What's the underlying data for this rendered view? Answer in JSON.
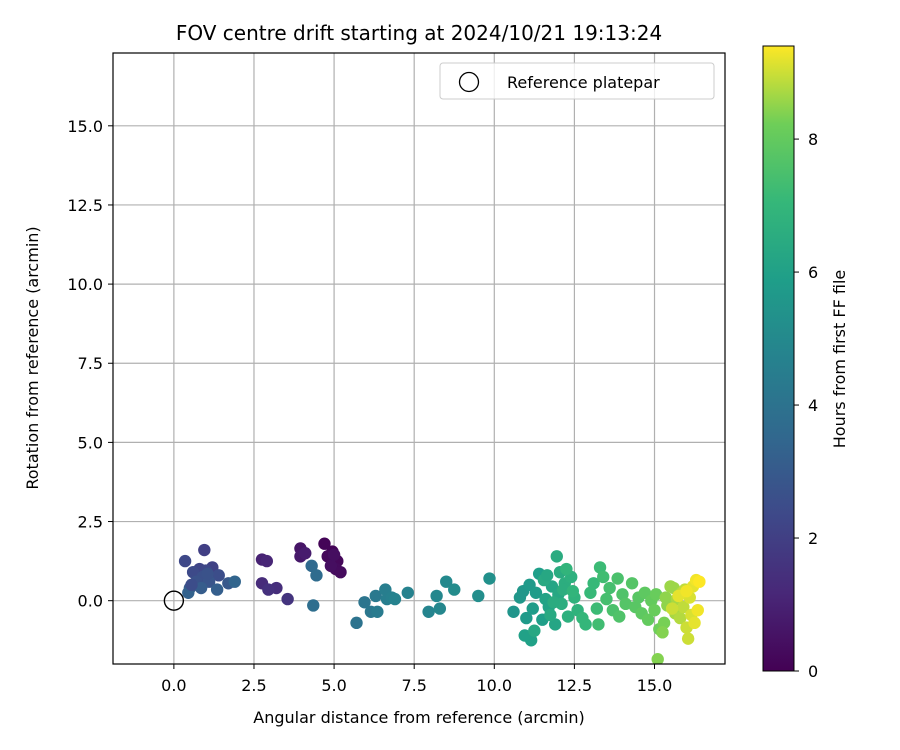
{
  "chart_data": {
    "type": "scatter",
    "title": "FOV centre drift starting at 2024/10/21 19:13:24",
    "xlabel": "Angular distance from reference (arcmin)",
    "ylabel": "Rotation from reference (arcmin)",
    "xlim": [
      -1.9,
      17.2
    ],
    "ylim": [
      -2.0,
      17.3
    ],
    "xticks": [
      0,
      2.5,
      5,
      7.5,
      10,
      12.5,
      15
    ],
    "xtick_labels": [
      "0.0",
      "2.5",
      "5.0",
      "7.5",
      "10.0",
      "12.5",
      "15.0"
    ],
    "yticks": [
      0,
      2.5,
      5,
      7.5,
      10,
      12.5,
      15
    ],
    "ytick_labels": [
      "0.0",
      "2.5",
      "5.0",
      "7.5",
      "10.0",
      "12.5",
      "15.0"
    ],
    "grid": true,
    "legend": {
      "position": "top-right",
      "entries": [
        "Reference platepar"
      ]
    },
    "reference_point": {
      "x": 0.0,
      "y": 0.0,
      "label": "Reference platepar",
      "marker": "open circle"
    },
    "colorbar": {
      "label": "Hours from first FF file",
      "range": [
        0,
        9.4
      ],
      "ticks": [
        0,
        2,
        4,
        6,
        8
      ],
      "tick_labels": [
        "0",
        "2",
        "4",
        "6",
        "8"
      ],
      "colormap": "viridis"
    },
    "points": [
      {
        "x": 4.7,
        "y": 1.8,
        "h": 0.1
      },
      {
        "x": 4.95,
        "y": 1.55,
        "h": 0.1
      },
      {
        "x": 5.1,
        "y": 1.25,
        "h": 0.2
      },
      {
        "x": 4.8,
        "y": 1.4,
        "h": 0.2
      },
      {
        "x": 5.05,
        "y": 1.0,
        "h": 0.3
      },
      {
        "x": 5.2,
        "y": 0.9,
        "h": 0.3
      },
      {
        "x": 4.9,
        "y": 1.1,
        "h": 0.4
      },
      {
        "x": 5.0,
        "y": 1.45,
        "h": 0.4
      },
      {
        "x": 3.95,
        "y": 1.65,
        "h": 0.6
      },
      {
        "x": 3.95,
        "y": 1.4,
        "h": 0.7
      },
      {
        "x": 4.1,
        "y": 1.5,
        "h": 0.8
      },
      {
        "x": 2.75,
        "y": 1.3,
        "h": 1.0
      },
      {
        "x": 2.9,
        "y": 1.25,
        "h": 1.1
      },
      {
        "x": 2.75,
        "y": 0.55,
        "h": 1.3
      },
      {
        "x": 3.2,
        "y": 0.4,
        "h": 1.4
      },
      {
        "x": 2.95,
        "y": 0.35,
        "h": 1.5
      },
      {
        "x": 3.55,
        "y": 0.05,
        "h": 1.6
      },
      {
        "x": 0.95,
        "y": 1.6,
        "h": 2.0
      },
      {
        "x": 0.35,
        "y": 1.25,
        "h": 2.3
      },
      {
        "x": 1.2,
        "y": 1.05,
        "h": 2.1
      },
      {
        "x": 0.8,
        "y": 1.0,
        "h": 2.2
      },
      {
        "x": 1.0,
        "y": 0.95,
        "h": 2.3
      },
      {
        "x": 0.6,
        "y": 0.9,
        "h": 2.4
      },
      {
        "x": 1.4,
        "y": 0.8,
        "h": 2.5
      },
      {
        "x": 0.9,
        "y": 0.75,
        "h": 2.6
      },
      {
        "x": 0.7,
        "y": 0.6,
        "h": 2.7
      },
      {
        "x": 1.1,
        "y": 0.6,
        "h": 2.8
      },
      {
        "x": 1.7,
        "y": 0.55,
        "h": 2.9
      },
      {
        "x": 0.5,
        "y": 0.4,
        "h": 3.0
      },
      {
        "x": 0.85,
        "y": 0.4,
        "h": 3.1
      },
      {
        "x": 1.35,
        "y": 0.35,
        "h": 3.2
      },
      {
        "x": 0.45,
        "y": 0.25,
        "h": 3.3
      },
      {
        "x": 1.9,
        "y": 0.6,
        "h": 3.4
      },
      {
        "x": 0.55,
        "y": 0.5,
        "h": 2.5
      },
      {
        "x": 1.05,
        "y": 0.85,
        "h": 2.7
      },
      {
        "x": 4.3,
        "y": 1.1,
        "h": 3.6
      },
      {
        "x": 4.45,
        "y": 0.8,
        "h": 3.7
      },
      {
        "x": 4.35,
        "y": -0.15,
        "h": 3.8
      },
      {
        "x": 5.7,
        "y": -0.7,
        "h": 4.0
      },
      {
        "x": 5.95,
        "y": -0.05,
        "h": 4.1
      },
      {
        "x": 6.15,
        "y": -0.35,
        "h": 4.2
      },
      {
        "x": 6.3,
        "y": 0.15,
        "h": 4.3
      },
      {
        "x": 6.35,
        "y": -0.35,
        "h": 4.4
      },
      {
        "x": 6.6,
        "y": 0.35,
        "h": 4.5
      },
      {
        "x": 6.65,
        "y": 0.05,
        "h": 4.5
      },
      {
        "x": 6.8,
        "y": 0.1,
        "h": 4.6
      },
      {
        "x": 6.9,
        "y": 0.05,
        "h": 4.7
      },
      {
        "x": 7.3,
        "y": 0.25,
        "h": 4.7
      },
      {
        "x": 7.95,
        "y": -0.35,
        "h": 4.8
      },
      {
        "x": 8.2,
        "y": 0.15,
        "h": 4.9
      },
      {
        "x": 8.3,
        "y": -0.25,
        "h": 4.9
      },
      {
        "x": 8.5,
        "y": 0.6,
        "h": 5.0
      },
      {
        "x": 8.75,
        "y": 0.35,
        "h": 5.1
      },
      {
        "x": 9.5,
        "y": 0.15,
        "h": 5.2
      },
      {
        "x": 9.85,
        "y": 0.7,
        "h": 5.3
      },
      {
        "x": 10.6,
        "y": -0.35,
        "h": 5.5
      },
      {
        "x": 10.8,
        "y": 0.1,
        "h": 5.6
      },
      {
        "x": 10.9,
        "y": 0.3,
        "h": 5.6
      },
      {
        "x": 11.0,
        "y": -0.55,
        "h": 5.7
      },
      {
        "x": 11.1,
        "y": 0.5,
        "h": 5.7
      },
      {
        "x": 11.2,
        "y": -0.25,
        "h": 5.8
      },
      {
        "x": 11.3,
        "y": 0.25,
        "h": 5.8
      },
      {
        "x": 11.4,
        "y": 0.85,
        "h": 5.9
      },
      {
        "x": 11.5,
        "y": -0.6,
        "h": 5.9
      },
      {
        "x": 11.15,
        "y": -1.25,
        "h": 6.0
      },
      {
        "x": 10.95,
        "y": -1.1,
        "h": 6.0
      },
      {
        "x": 11.6,
        "y": 0.05,
        "h": 6.1
      },
      {
        "x": 11.7,
        "y": -0.2,
        "h": 6.1
      },
      {
        "x": 11.8,
        "y": 0.45,
        "h": 6.2
      },
      {
        "x": 11.9,
        "y": -0.75,
        "h": 6.2
      },
      {
        "x": 12.0,
        "y": 0.2,
        "h": 6.3
      },
      {
        "x": 11.25,
        "y": -0.95,
        "h": 6.3
      },
      {
        "x": 11.55,
        "y": 0.65,
        "h": 6.4
      },
      {
        "x": 11.75,
        "y": -0.45,
        "h": 6.4
      },
      {
        "x": 11.95,
        "y": 1.4,
        "h": 6.5
      },
      {
        "x": 12.05,
        "y": 0.9,
        "h": 6.5
      },
      {
        "x": 12.1,
        "y": -0.1,
        "h": 6.6
      },
      {
        "x": 12.2,
        "y": 0.55,
        "h": 6.6
      },
      {
        "x": 12.3,
        "y": -0.5,
        "h": 6.7
      },
      {
        "x": 12.4,
        "y": 0.75,
        "h": 6.7
      },
      {
        "x": 12.5,
        "y": 0.1,
        "h": 6.8
      },
      {
        "x": 12.6,
        "y": -0.3,
        "h": 6.8
      },
      {
        "x": 12.25,
        "y": 1.0,
        "h": 6.9
      },
      {
        "x": 11.85,
        "y": -0.05,
        "h": 6.5
      },
      {
        "x": 12.15,
        "y": 0.35,
        "h": 6.6
      },
      {
        "x": 11.65,
        "y": 0.8,
        "h": 6.3
      },
      {
        "x": 12.45,
        "y": 0.3,
        "h": 6.9
      },
      {
        "x": 12.75,
        "y": -0.55,
        "h": 7.0
      },
      {
        "x": 12.85,
        "y": -0.75,
        "h": 7.0
      },
      {
        "x": 13.0,
        "y": 0.25,
        "h": 7.1
      },
      {
        "x": 13.1,
        "y": 0.55,
        "h": 7.1
      },
      {
        "x": 13.2,
        "y": -0.25,
        "h": 7.2
      },
      {
        "x": 13.3,
        "y": 1.05,
        "h": 7.2
      },
      {
        "x": 13.4,
        "y": 0.75,
        "h": 7.3
      },
      {
        "x": 13.25,
        "y": -0.75,
        "h": 7.3
      },
      {
        "x": 13.5,
        "y": 0.05,
        "h": 7.4
      },
      {
        "x": 13.6,
        "y": 0.4,
        "h": 7.4
      },
      {
        "x": 13.7,
        "y": -0.3,
        "h": 7.5
      },
      {
        "x": 13.85,
        "y": 0.7,
        "h": 7.5
      },
      {
        "x": 13.9,
        "y": -0.5,
        "h": 7.6
      },
      {
        "x": 14.0,
        "y": 0.2,
        "h": 7.6
      },
      {
        "x": 14.1,
        "y": -0.1,
        "h": 7.7
      },
      {
        "x": 14.3,
        "y": 0.55,
        "h": 7.7
      },
      {
        "x": 14.4,
        "y": -0.2,
        "h": 7.8
      },
      {
        "x": 14.5,
        "y": 0.1,
        "h": 7.8
      },
      {
        "x": 14.6,
        "y": -0.4,
        "h": 7.9
      },
      {
        "x": 14.7,
        "y": 0.25,
        "h": 7.9
      },
      {
        "x": 14.8,
        "y": -0.6,
        "h": 8.0
      },
      {
        "x": 14.9,
        "y": 0.0,
        "h": 8.0
      },
      {
        "x": 15.0,
        "y": -0.3,
        "h": 8.1
      },
      {
        "x": 15.05,
        "y": 0.2,
        "h": 8.1
      },
      {
        "x": 15.1,
        "y": -1.85,
        "h": 8.4
      },
      {
        "x": 15.15,
        "y": -0.9,
        "h": 8.2
      },
      {
        "x": 15.3,
        "y": -0.7,
        "h": 8.3
      },
      {
        "x": 15.25,
        "y": -1.0,
        "h": 8.4
      },
      {
        "x": 15.35,
        "y": 0.1,
        "h": 8.5
      },
      {
        "x": 15.4,
        "y": -0.15,
        "h": 8.5
      },
      {
        "x": 15.5,
        "y": 0.45,
        "h": 8.6
      },
      {
        "x": 15.6,
        "y": 0.4,
        "h": 8.6
      },
      {
        "x": 15.65,
        "y": -0.4,
        "h": 8.7
      },
      {
        "x": 15.7,
        "y": 0.05,
        "h": 8.7
      },
      {
        "x": 15.8,
        "y": -0.55,
        "h": 8.8
      },
      {
        "x": 15.85,
        "y": 0.25,
        "h": 8.8
      },
      {
        "x": 15.9,
        "y": -0.2,
        "h": 8.9
      },
      {
        "x": 15.95,
        "y": 0.35,
        "h": 8.9
      },
      {
        "x": 16.0,
        "y": -0.85,
        "h": 9.0
      },
      {
        "x": 16.05,
        "y": -1.2,
        "h": 9.0
      },
      {
        "x": 16.1,
        "y": 0.1,
        "h": 9.1
      },
      {
        "x": 16.15,
        "y": -0.45,
        "h": 9.1
      },
      {
        "x": 16.2,
        "y": 0.45,
        "h": 9.2
      },
      {
        "x": 16.25,
        "y": -0.7,
        "h": 9.2
      },
      {
        "x": 16.3,
        "y": 0.65,
        "h": 9.3
      },
      {
        "x": 16.35,
        "y": -0.3,
        "h": 9.3
      },
      {
        "x": 16.4,
        "y": 0.6,
        "h": 9.4
      },
      {
        "x": 15.75,
        "y": 0.15,
        "h": 9.2
      },
      {
        "x": 16.0,
        "y": 0.3,
        "h": 9.3
      },
      {
        "x": 15.55,
        "y": -0.25,
        "h": 9.0
      }
    ]
  }
}
